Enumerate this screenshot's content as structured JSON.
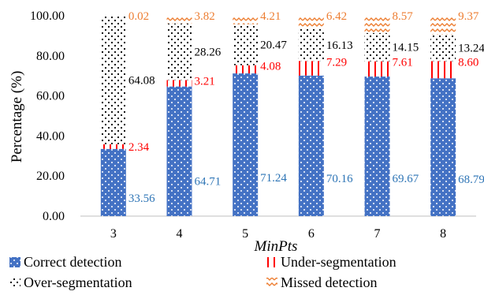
{
  "chart_data": {
    "type": "bar",
    "stacked": true,
    "categories": [
      "3",
      "4",
      "5",
      "6",
      "7",
      "8"
    ],
    "series": [
      {
        "name": "Correct detection",
        "color": "#4472C4",
        "label_color": "#2E75B6",
        "values": [
          33.56,
          64.71,
          71.24,
          70.16,
          69.67,
          68.79
        ]
      },
      {
        "name": "Under-segmentation",
        "color": "#FF0000",
        "label_color": "#FF0000",
        "values": [
          2.34,
          3.21,
          4.08,
          7.29,
          7.61,
          8.6
        ]
      },
      {
        "name": "Over-segmentation",
        "color": "#000000",
        "label_color": "#000000",
        "values": [
          64.08,
          28.26,
          20.47,
          16.13,
          14.15,
          13.24
        ]
      },
      {
        "name": "Missed detection",
        "color": "#ED7D31",
        "label_color": "#ED7D31",
        "values": [
          0.02,
          3.82,
          4.21,
          6.42,
          8.57,
          9.37
        ]
      }
    ],
    "data_labels": [
      [
        "33.56",
        "64.71",
        "71.24",
        "70.16",
        "69.67",
        "68.79"
      ],
      [
        "2.34",
        "3.21",
        "4.08",
        "7.29",
        "7.61",
        "8.60"
      ],
      [
        "64.08",
        "28.26",
        "20.47",
        "16.13",
        "14.15",
        "13.24"
      ],
      [
        "0.02",
        "3.82",
        "4.21",
        "6.42",
        "8.57",
        "9.37"
      ]
    ],
    "xlabel": "MinPts",
    "ylabel": "Percentage (%)",
    "ylim": [
      0,
      100
    ],
    "yticks": [
      "0.00",
      "20.00",
      "40.00",
      "60.00",
      "80.00",
      "100.00"
    ],
    "grid": false,
    "legend_position": "bottom"
  }
}
